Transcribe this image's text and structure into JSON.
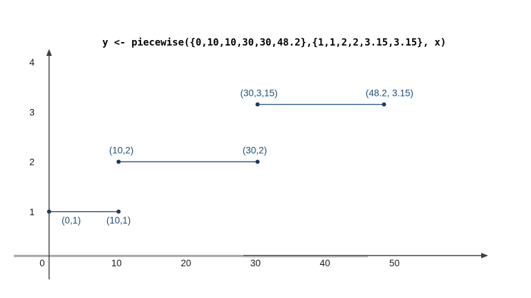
{
  "colors": {
    "background": "#ffffff",
    "title_text": "#000000",
    "axis_dark": "#3f3f3f",
    "axis_gray": "#9d9d9d",
    "axis_gray_light": "#c6c6c6",
    "tick_text": "#1a1a1a",
    "segment_line": "#2f5b8c",
    "point_dot": "#1f3864",
    "point_label": "#1f4e79"
  },
  "chart_data": {
    "type": "line",
    "subtype": "piecewise-constant-segments",
    "title": "y <- piecewise({0,10,10,30,30,48.2},{1,1,2,2,3.15,3.15}, x)",
    "xlabel": "",
    "ylabel": "",
    "xlim": [
      0,
      63
    ],
    "ylim": [
      0,
      4.3
    ],
    "grid": false,
    "legend": "none",
    "origin_label": "0",
    "x_ticks": [
      {
        "value": 10,
        "label": "10"
      },
      {
        "value": 20,
        "label": "20"
      },
      {
        "value": 30,
        "label": "30"
      },
      {
        "value": 40,
        "label": "40"
      },
      {
        "value": 50,
        "label": "50"
      }
    ],
    "y_ticks": [
      {
        "value": 1,
        "label": "1"
      },
      {
        "value": 2,
        "label": "2"
      },
      {
        "value": 3,
        "label": "3"
      },
      {
        "value": 4,
        "label": "4"
      }
    ],
    "segments": [
      {
        "points": [
          [
            0,
            1
          ],
          [
            10,
            1
          ]
        ],
        "labels": [
          {
            "text": "(0,1)",
            "pos": "below",
            "dx": 32
          },
          {
            "text": "(10,1)",
            "pos": "below",
            "dx": 0
          }
        ]
      },
      {
        "points": [
          [
            10,
            2
          ],
          [
            30,
            2
          ]
        ],
        "labels": [
          {
            "text": "(10,2)",
            "pos": "above",
            "dx": 4
          },
          {
            "text": "(30,2)",
            "pos": "above",
            "dx": -4
          }
        ]
      },
      {
        "points": [
          [
            30,
            3.15
          ],
          [
            48.2,
            3.15
          ]
        ],
        "labels": [
          {
            "text": "(30,3,15)",
            "pos": "above",
            "dx": 2
          },
          {
            "text": "(48.2, 3.15)",
            "pos": "above",
            "dx": 8
          }
        ]
      }
    ]
  }
}
